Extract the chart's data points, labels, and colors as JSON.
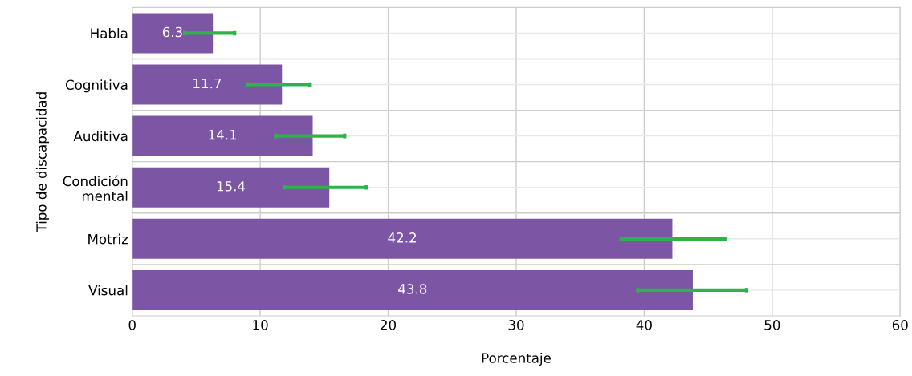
{
  "chart_data": {
    "type": "bar",
    "orientation": "horizontal",
    "categories": [
      "Habla",
      "Cognitiva",
      "Auditiva",
      "Condición\nmental",
      "Motriz",
      "Visual"
    ],
    "values": [
      6.3,
      11.7,
      14.1,
      15.4,
      42.2,
      43.8
    ],
    "errors": [
      [
        4.1,
        8.0
      ],
      [
        9.0,
        13.9
      ],
      [
        11.2,
        16.6
      ],
      [
        11.9,
        18.3
      ],
      [
        38.2,
        46.3
      ],
      [
        39.5,
        48.0
      ]
    ],
    "color": "#7d55a5",
    "data_labels": true,
    "xlim": [
      0,
      60
    ],
    "xticks": [
      0,
      10,
      20,
      30,
      40,
      50,
      60
    ],
    "xlabel": "Porcentaje",
    "ylabel": "Tipo de discapacidad",
    "grid": true,
    "legend": false
  }
}
